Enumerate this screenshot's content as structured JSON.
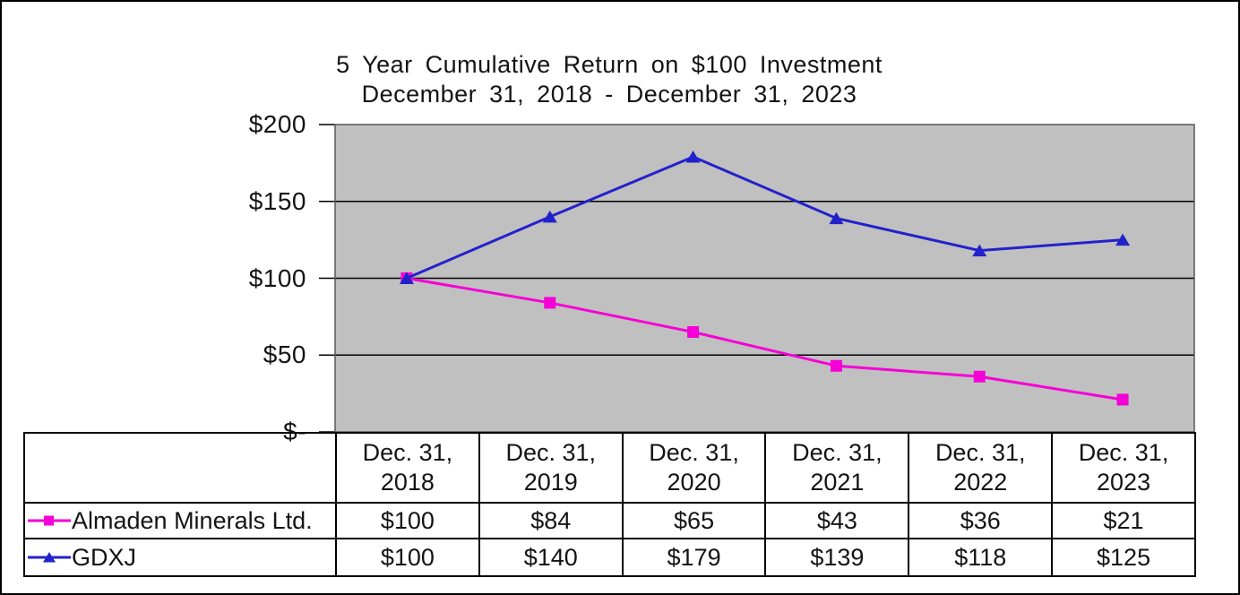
{
  "chart_data": {
    "type": "line",
    "title": "5 Year Cumulative Return on $100 Investment",
    "subtitle": "December 31, 2018 - December 31, 2023",
    "categories": [
      "Dec. 31, 2018",
      "Dec. 31, 2019",
      "Dec. 31, 2020",
      "Dec. 31, 2021",
      "Dec. 31, 2022",
      "Dec. 31, 2023"
    ],
    "series": [
      {
        "name": "Almaden Minerals Ltd.",
        "color": "#F500D6",
        "marker": "square",
        "values": [
          100,
          84,
          65,
          43,
          36,
          21
        ]
      },
      {
        "name": "GDXJ",
        "color": "#2222CC",
        "marker": "triangle",
        "values": [
          100,
          140,
          179,
          139,
          118,
          125
        ]
      }
    ],
    "y_ticks": [
      {
        "value": 0,
        "label": "$-"
      },
      {
        "value": 50,
        "label": "$50"
      },
      {
        "value": 100,
        "label": "$100"
      },
      {
        "value": 150,
        "label": "$150"
      },
      {
        "value": 200,
        "label": "$200"
      }
    ],
    "ylim": [
      0,
      200
    ],
    "value_prefix": "$",
    "plot_bg": "#C0C0C0",
    "grid": true,
    "gridline_color": "#000000",
    "plot_border_color": "#595959",
    "legend_position": "table-left"
  }
}
